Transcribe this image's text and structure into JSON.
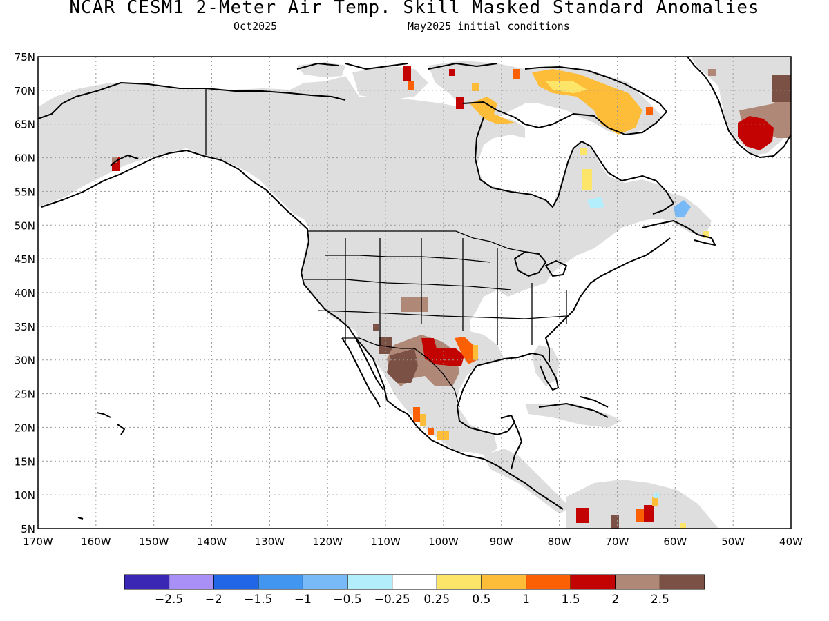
{
  "header": {
    "title": "NCAR_CESM1 2-Meter Air Temp. Skill Masked Standard Anomalies",
    "target_month": "Oct2025",
    "init": "May2025 initial conditions"
  },
  "map": {
    "lon_range": [
      -170,
      -40
    ],
    "lat_range": [
      5,
      75
    ],
    "lat_labels": [
      "75N",
      "70N",
      "65N",
      "60N",
      "55N",
      "50N",
      "45N",
      "40N",
      "35N",
      "30N",
      "25N",
      "20N",
      "15N",
      "10N",
      "5N"
    ],
    "lon_labels": [
      "170W",
      "160W",
      "150W",
      "140W",
      "130W",
      "120W",
      "110W",
      "100W",
      "90W",
      "80W",
      "70W",
      "60W",
      "50W",
      "40W"
    ],
    "mask_color": "#dedede",
    "grid": true
  },
  "colorbar": {
    "colors": [
      "#3a28b5",
      "#a890f6",
      "#2166e6",
      "#4296f0",
      "#78baf8",
      "#b2eefc",
      "#ffffff",
      "#fde56a",
      "#fdbd38",
      "#fb6005",
      "#c30202",
      "#b08878",
      "#7b5045"
    ],
    "labels": [
      "-2.5",
      "-2",
      "-1.5",
      "-1",
      "-0.5",
      "-0.25",
      "0.25",
      "0.5",
      "1",
      "1.5",
      "2",
      "2.5"
    ]
  },
  "anomaly_regions": [
    {
      "name": "greenland-south",
      "lon": -46,
      "lat": 61.8,
      "value": 2.2
    },
    {
      "name": "greenland-southeast",
      "lon": -43,
      "lat": 67,
      "value": 2.7
    },
    {
      "name": "baffin-island",
      "lon": -72,
      "lat": 68,
      "value": 0.8
    },
    {
      "name": "arctic-islands",
      "lon": -103,
      "lat": 72,
      "value": 1.8
    },
    {
      "name": "alaska-southwest",
      "lon": -156,
      "lat": 58.5,
      "value": 2.0
    },
    {
      "name": "labrador",
      "lon": -58,
      "lat": 52,
      "value": -0.9
    },
    {
      "name": "colorado",
      "lon": -104,
      "lat": 38.5,
      "value": 2.4
    },
    {
      "name": "arizona",
      "lon": -111,
      "lat": 32.5,
      "value": 2.8
    },
    {
      "name": "northern-mexico",
      "lon": -106,
      "lat": 27.5,
      "value": 2.6
    },
    {
      "name": "texas",
      "lon": -99,
      "lat": 30.5,
      "value": 2.1
    },
    {
      "name": "east-texas",
      "lon": -95,
      "lat": 31,
      "value": 1.2
    },
    {
      "name": "western-mexico",
      "lon": -105,
      "lat": 20.5,
      "value": 1.3
    },
    {
      "name": "colombia",
      "lon": -76,
      "lat": 7,
      "value": 2.1
    },
    {
      "name": "venezuela",
      "lon": -66,
      "lat": 7.5,
      "value": 1.6
    }
  ]
}
